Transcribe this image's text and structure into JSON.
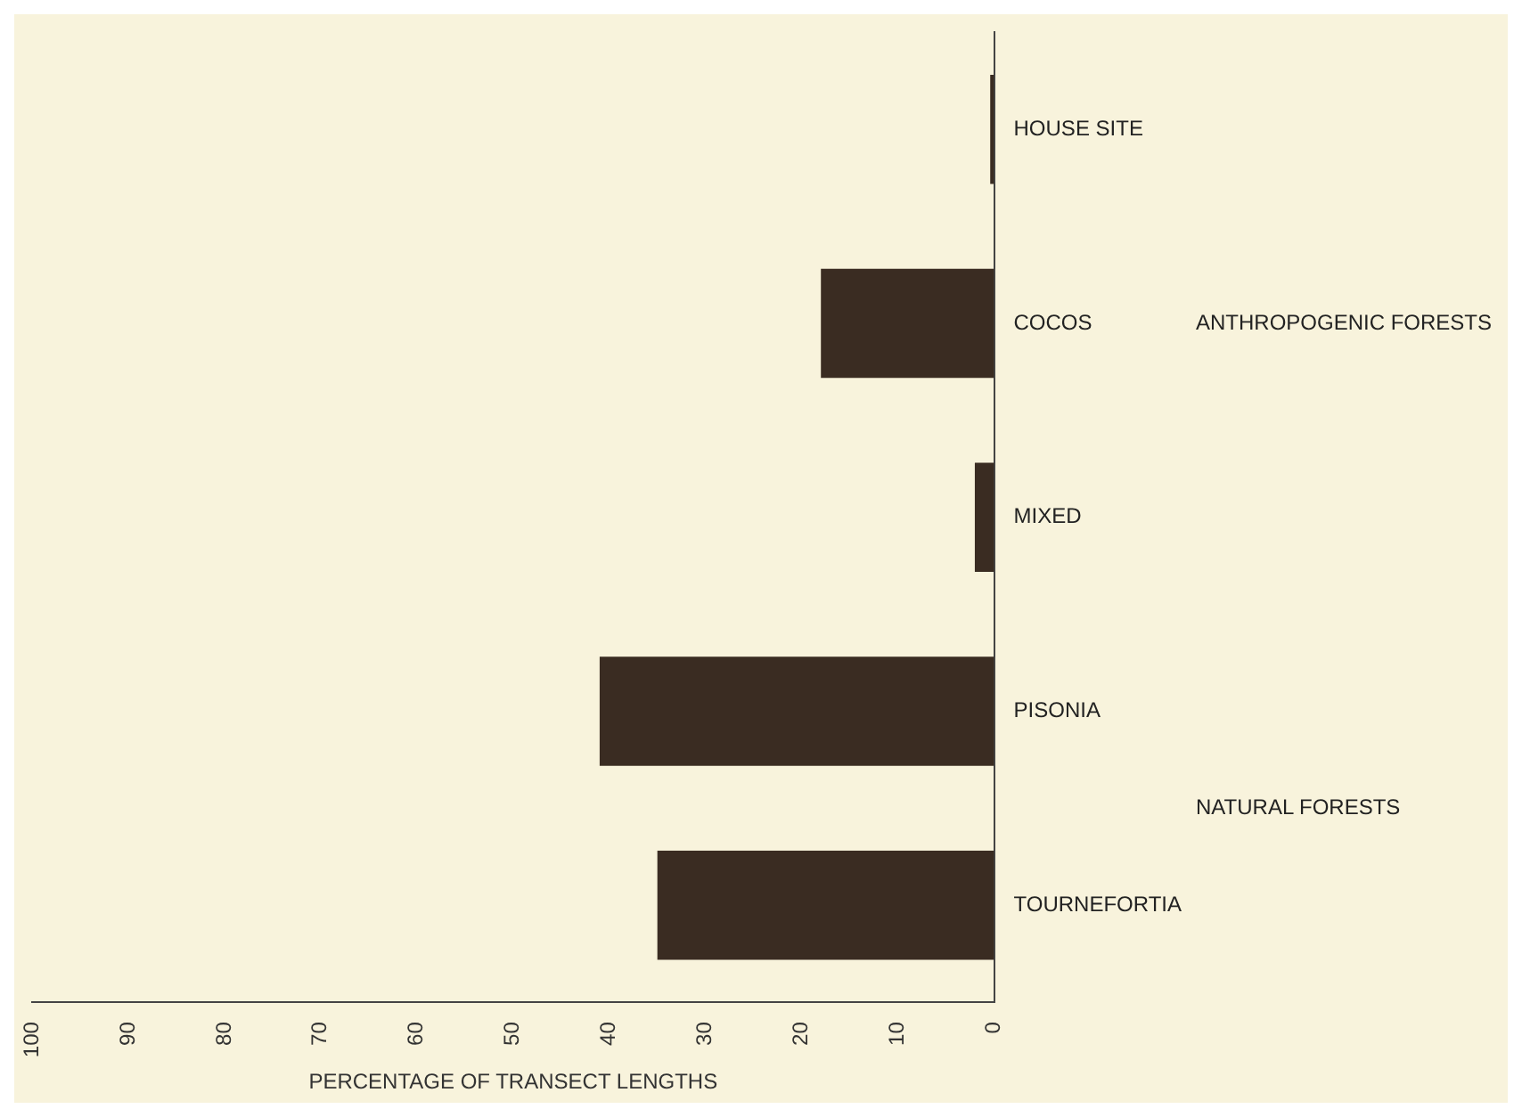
{
  "chart_data": {
    "type": "bar",
    "orientation": "horizontal",
    "categories": [
      "HOUSE SITE",
      "COCOS",
      "MIXED",
      "PISONIA",
      "TOURNEFORTIA"
    ],
    "values": [
      0.4,
      18,
      2,
      41,
      35
    ],
    "color": "#3a2c22",
    "xlabel": "PERCENTAGE OF TRANSECT LENGTHS",
    "xlim": [
      100,
      0
    ],
    "xticks": [
      100,
      90,
      80,
      70,
      60,
      50,
      40,
      30,
      20,
      10,
      0
    ],
    "grid": false,
    "annotations": [
      "ANTHROPOGENIC FORESTS",
      "NATURAL FORESTS"
    ]
  }
}
